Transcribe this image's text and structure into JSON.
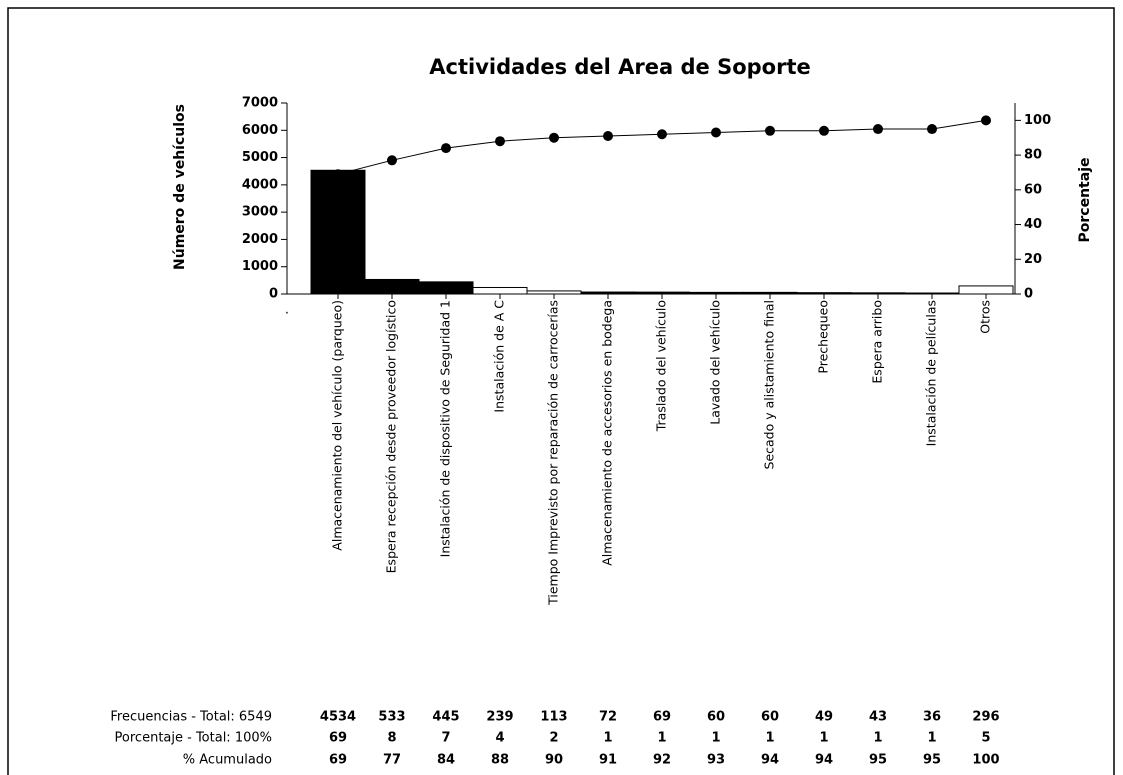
{
  "chart_data": {
    "type": "pareto",
    "title": "Actividades del Area de Soporte",
    "ylabel": "Número de vehículos",
    "y2label": "Porcentaje",
    "categories": [
      "Almacenamiento del vehículo (parqueo)",
      "Espera recepción desde proveedor logístico",
      "Instalación de dispositivo de Seguridad 1",
      "Instalación de A C",
      "Tiempo Imprevisto por reparación de carrocerías",
      "Almacenamiento de accesorios en bodega",
      "Traslado del vehículo",
      "Lavado del vehículo",
      "Secado y alistamiento final",
      "Prechequeo",
      "Espera arribo",
      "Instalación de películas",
      "Otros"
    ],
    "series": [
      {
        "name": "Frecuencias - Total: 6549",
        "values": [
          4534,
          533,
          445,
          239,
          113,
          72,
          69,
          60,
          60,
          49,
          43,
          36,
          296
        ],
        "colors": [
          "#000000",
          "#000000",
          "#000000",
          "#ffffff",
          "#ffffff",
          "#000000",
          "#000000",
          "#000000",
          "#000000",
          "#000000",
          "#000000",
          "#000000",
          "#ffffff"
        ]
      },
      {
        "name": "Porcentaje - Total: 100%",
        "values": [
          69,
          8,
          7,
          4,
          2,
          1,
          1,
          1,
          1,
          1,
          1,
          1,
          5
        ]
      },
      {
        "name": "% Acumulado",
        "values": [
          69,
          77,
          84,
          88,
          90,
          91,
          92,
          93,
          94,
          94,
          95,
          95,
          100
        ],
        "axis": "y2",
        "color": "#000000"
      }
    ],
    "ylim": [
      0,
      7000
    ],
    "yticks": [
      0,
      1000,
      2000,
      3000,
      4000,
      5000,
      6000,
      7000
    ],
    "y2lim": [
      0,
      110
    ],
    "y2ticks": [
      0,
      20,
      40,
      60,
      80,
      100
    ]
  }
}
